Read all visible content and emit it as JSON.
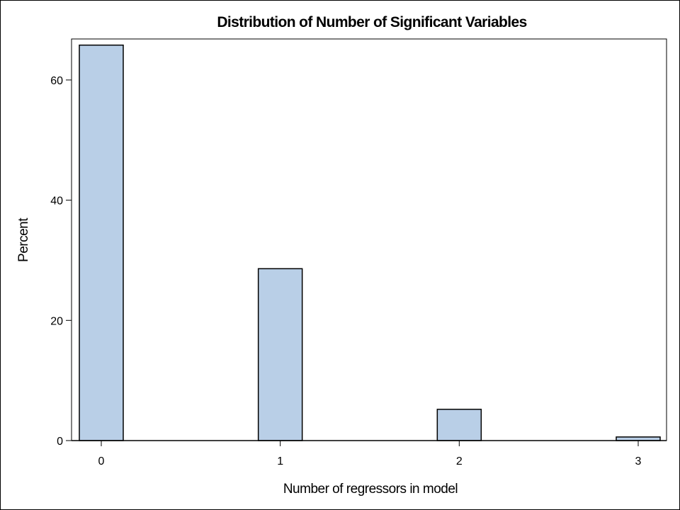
{
  "chart_data": {
    "type": "bar",
    "title": "Distribution of Number of Significant Variables",
    "xlabel": "Number of regressors in model",
    "ylabel": "Percent",
    "categories": [
      "0",
      "1",
      "2",
      "3"
    ],
    "values": [
      65.8,
      28.6,
      5.2,
      0.6
    ],
    "yticks": [
      0,
      20,
      40,
      60
    ],
    "ylim": [
      0,
      66
    ],
    "grid": false,
    "legend": "none",
    "bar_color": "#b9cfe7",
    "bar_edge_color": "#000000"
  }
}
